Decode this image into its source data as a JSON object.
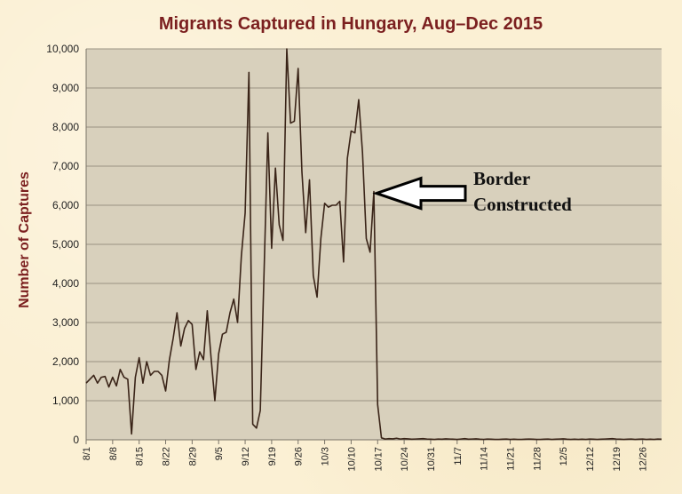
{
  "chart_data": {
    "type": "line",
    "title": "Migrants Captured in Hungary, Aug–Dec 2015",
    "xlabel": "",
    "ylabel": "Number of Captures",
    "ylim": [
      0,
      10000
    ],
    "yticks": [
      "0",
      "1,000",
      "2,000",
      "3,000",
      "4,000",
      "5,000",
      "6,000",
      "7,000",
      "8,000",
      "9,000",
      "10,000"
    ],
    "ytick_values": [
      0,
      1000,
      2000,
      3000,
      4000,
      5000,
      6000,
      7000,
      8000,
      9000,
      10000
    ],
    "xticks": [
      "8/1",
      "8/8",
      "8/15",
      "8/22",
      "8/29",
      "9/5",
      "9/12",
      "9/19",
      "9/26",
      "10/3",
      "10/10",
      "10/17",
      "10/24",
      "10/31",
      "11/7",
      "11/14",
      "11/21",
      "11/28",
      "12/5",
      "12/12",
      "12/19",
      "12/26"
    ],
    "xtick_days": [
      0,
      7,
      14,
      21,
      28,
      35,
      42,
      49,
      56,
      63,
      70,
      77,
      84,
      91,
      98,
      105,
      112,
      119,
      126,
      133,
      140,
      147
    ],
    "x_range_days": [
      0,
      152
    ],
    "grid": true,
    "line_color": "#3a2418",
    "plot_bg": "#d8d0bc",
    "series": [
      {
        "name": "Captures",
        "values": [
          1450,
          1550,
          1650,
          1450,
          1600,
          1620,
          1350,
          1600,
          1380,
          1800,
          1600,
          1550,
          150,
          1600,
          2100,
          1450,
          2000,
          1650,
          1750,
          1750,
          1650,
          1250,
          2050,
          2600,
          3250,
          2400,
          2850,
          3050,
          2950,
          1800,
          2250,
          2050,
          3300,
          2100,
          1000,
          2200,
          2700,
          2750,
          3250,
          3600,
          3000,
          4700,
          5800,
          9400,
          400,
          300,
          750,
          4300,
          7850,
          4900,
          6950,
          5500,
          5100,
          10000,
          8100,
          8150,
          9500,
          6850,
          5300,
          6650,
          4200,
          3650,
          5150,
          6050,
          5950,
          6000,
          6000,
          6100,
          4550,
          7200,
          7900,
          7850,
          8700,
          7350,
          5150,
          4800,
          6350,
          900,
          50,
          20,
          30,
          25,
          40,
          20,
          30,
          25,
          15,
          20,
          25,
          30,
          20,
          15,
          10,
          20,
          15,
          25,
          20,
          15,
          10,
          20,
          30,
          15,
          20,
          25,
          15,
          10,
          20,
          15,
          10,
          10,
          15,
          20,
          10,
          15,
          10,
          10,
          15,
          20,
          15,
          10,
          10,
          15,
          20,
          10,
          15,
          20,
          25,
          15,
          10,
          15,
          10,
          15,
          10,
          20,
          15,
          10,
          15,
          20,
          25,
          30,
          20,
          15,
          10,
          15,
          20,
          10,
          15,
          20,
          10,
          15,
          10,
          20,
          15
        ]
      }
    ],
    "annotation": {
      "lines": [
        "Border",
        "Constructed"
      ],
      "day": 76,
      "value": 6350
    }
  }
}
